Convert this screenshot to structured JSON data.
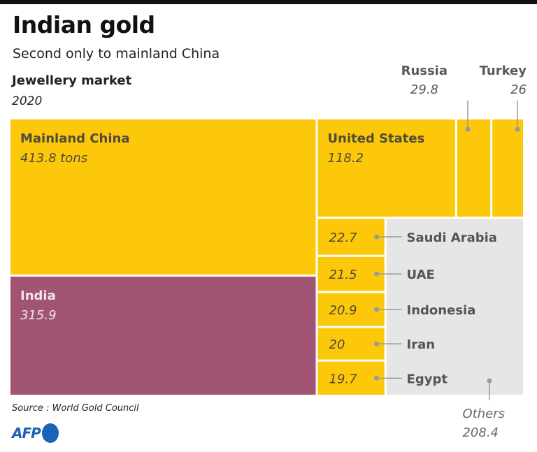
{
  "header": {
    "title": "Indian gold",
    "subtitle": "Second only to mainland China",
    "metric_label": "Jewellery market",
    "year": "2020"
  },
  "footer": {
    "source": "Source : World Gold Council",
    "logo_text": "AFP"
  },
  "colors": {
    "gold": "#FDC70A",
    "india": "#A15473",
    "others": "#E6E6E6",
    "label_dark": "#4F4B3A",
    "leader": "#9A9A9A",
    "india_text": "#F3E5EB"
  },
  "chart_data": {
    "type": "treemap",
    "title": "Indian gold",
    "subtitle": "Second only to mainland China",
    "unit": "tons",
    "measure": "Jewellery market",
    "year": "2020",
    "items": [
      {
        "name": "Mainland China",
        "value": 413.8,
        "value_label": "413.8 tons",
        "highlight": false
      },
      {
        "name": "India",
        "value": 315.9,
        "value_label": "315.9",
        "highlight": true
      },
      {
        "name": "United States",
        "value": 118.2,
        "value_label": "118.2",
        "highlight": false
      },
      {
        "name": "Russia",
        "value": 29.8,
        "value_label": "29.8",
        "highlight": false
      },
      {
        "name": "Turkey",
        "value": 26,
        "value_label": "26",
        "highlight": false
      },
      {
        "name": "Saudi Arabia",
        "value": 22.7,
        "value_label": "22.7",
        "highlight": false
      },
      {
        "name": "UAE",
        "value": 21.5,
        "value_label": "21.5",
        "highlight": false
      },
      {
        "name": "Indonesia",
        "value": 20.9,
        "value_label": "20.9",
        "highlight": false
      },
      {
        "name": "Iran",
        "value": 20,
        "value_label": "20",
        "highlight": false
      },
      {
        "name": "Egypt",
        "value": 19.7,
        "value_label": "19.7",
        "highlight": false
      },
      {
        "name": "Others",
        "value": 208.4,
        "value_label": "208.4",
        "highlight": false
      }
    ]
  }
}
